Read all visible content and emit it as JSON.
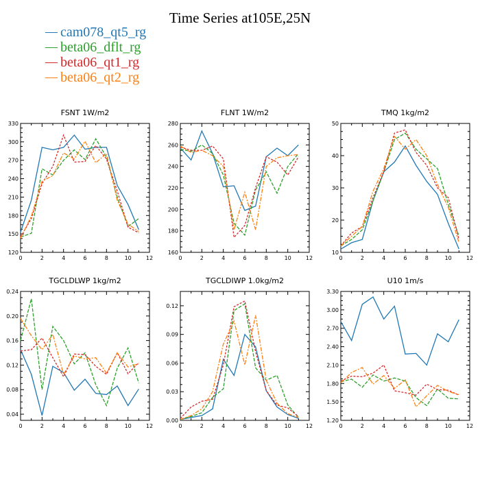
{
  "title": "Time Series at105E,25N",
  "legend": [
    {
      "name": "cam078_qt5_rg",
      "color": "#1f77b4"
    },
    {
      "name": "beta06_dflt_rg",
      "color": "#2ca02c"
    },
    {
      "name": "beta06_qt1_rg",
      "color": "#d62728"
    },
    {
      "name": "beta06_qt2_rg",
      "color": "#ff7f0e"
    }
  ],
  "chart_data": [
    {
      "type": "line",
      "title": "FSNT   1W/m2",
      "xlim": [
        0,
        12
      ],
      "xticks": [
        0,
        2,
        4,
        6,
        8,
        10,
        12
      ],
      "ylim": [
        120,
        330
      ],
      "yticks": [
        120,
        150,
        180,
        210,
        240,
        270,
        300,
        330
      ],
      "ytick_labels": [
        "120",
        "150",
        "180",
        "210",
        "240",
        "270",
        "300",
        "330"
      ],
      "x": [
        0,
        1,
        2,
        3,
        4,
        5,
        6,
        7,
        8,
        9,
        10,
        11
      ],
      "series": [
        {
          "name": "cam078_qt5_rg",
          "values": [
            153,
            205,
            291,
            287,
            291,
            311,
            288,
            291,
            291,
            229,
            198,
            157
          ]
        },
        {
          "name": "beta06_dflt_rg",
          "values": [
            145,
            151,
            256,
            246,
            270,
            287,
            271,
            305,
            275,
            210,
            162,
            175
          ]
        },
        {
          "name": "beta06_qt1_rg",
          "values": [
            145,
            175,
            232,
            260,
            311,
            267,
            268,
            294,
            272,
            220,
            161,
            152
          ]
        },
        {
          "name": "beta06_qt2_rg",
          "values": [
            143,
            179,
            236,
            245,
            282,
            272,
            301,
            266,
            281,
            205,
            166,
            154
          ]
        }
      ]
    },
    {
      "type": "line",
      "title": "FLNT   1W/m2",
      "xlim": [
        0,
        12
      ],
      "xticks": [
        0,
        2,
        4,
        6,
        8,
        10,
        12
      ],
      "ylim": [
        160,
        280
      ],
      "yticks": [
        160,
        180,
        200,
        220,
        240,
        260,
        280
      ],
      "ytick_labels": [
        "160",
        "180",
        "200",
        "220",
        "240",
        "260",
        "280"
      ],
      "x": [
        0,
        1,
        2,
        3,
        4,
        5,
        6,
        7,
        8,
        9,
        10,
        11
      ],
      "series": [
        {
          "name": "cam078_qt5_rg",
          "values": [
            257,
            246,
            273,
            252,
            221,
            222,
            199,
            203,
            249,
            257,
            250,
            260
          ]
        },
        {
          "name": "beta06_dflt_rg",
          "values": [
            256,
            254,
            260,
            252,
            232,
            187,
            176,
            218,
            235,
            215,
            240,
            252
          ]
        },
        {
          "name": "beta06_qt1_rg",
          "values": [
            258,
            255,
            255,
            259,
            247,
            174,
            185,
            220,
            249,
            244,
            232,
            249
          ]
        },
        {
          "name": "beta06_qt2_rg",
          "values": [
            259,
            253,
            255,
            250,
            240,
            181,
            216,
            181,
            240,
            248,
            250,
            251
          ]
        }
      ]
    },
    {
      "type": "line",
      "title": "TMQ   1kg/m2",
      "xlim": [
        0,
        12
      ],
      "xticks": [
        0,
        2,
        4,
        6,
        8,
        10,
        12
      ],
      "ylim": [
        10,
        50
      ],
      "yticks": [
        10,
        20,
        30,
        40,
        50
      ],
      "ytick_labels": [
        "10",
        "20",
        "30",
        "40",
        "50"
      ],
      "x": [
        0,
        1,
        2,
        3,
        4,
        5,
        6,
        7,
        8,
        9,
        10,
        11
      ],
      "series": [
        {
          "name": "cam078_qt5_rg",
          "values": [
            11,
            13,
            14,
            26,
            35,
            38,
            43,
            37,
            32,
            28,
            19,
            11
          ]
        },
        {
          "name": "beta06_dflt_rg",
          "values": [
            12,
            14,
            17,
            26,
            35,
            45,
            47,
            42,
            39,
            36,
            25,
            15
          ]
        },
        {
          "name": "beta06_qt1_rg",
          "values": [
            12,
            16,
            18,
            27,
            35,
            47,
            48,
            41,
            37,
            30,
            27,
            14
          ]
        },
        {
          "name": "beta06_qt2_rg",
          "values": [
            12,
            15,
            18,
            29,
            36,
            46,
            42,
            45,
            40,
            31,
            24,
            13
          ]
        }
      ]
    },
    {
      "type": "line",
      "title": "TGCLDLWP   1kg/m2",
      "xlim": [
        0,
        12
      ],
      "xticks": [
        0,
        2,
        4,
        6,
        8,
        10,
        12
      ],
      "ylim": [
        0.03,
        0.24
      ],
      "yticks": [
        0.04,
        0.08,
        0.12,
        0.16,
        0.2,
        0.24
      ],
      "ytick_labels": [
        "0.04",
        "0.08",
        "0.12",
        "0.16",
        "0.20",
        "0.24"
      ],
      "x": [
        0,
        1,
        2,
        3,
        4,
        5,
        6,
        7,
        8,
        9,
        10,
        11
      ],
      "series": [
        {
          "name": "cam078_qt5_rg",
          "values": [
            0.145,
            0.105,
            0.038,
            0.118,
            0.108,
            0.079,
            0.097,
            0.074,
            0.072,
            0.086,
            0.054,
            0.081
          ]
        },
        {
          "name": "beta06_dflt_rg",
          "values": [
            0.16,
            0.228,
            0.08,
            0.183,
            0.16,
            0.122,
            0.14,
            0.088,
            0.054,
            0.115,
            0.148,
            0.091
          ]
        },
        {
          "name": "beta06_qt1_rg",
          "values": [
            0.143,
            0.145,
            0.164,
            0.132,
            0.101,
            0.138,
            0.137,
            0.118,
            0.105,
            0.14,
            0.106,
            0.124
          ]
        },
        {
          "name": "beta06_qt2_rg",
          "values": [
            0.196,
            0.168,
            0.145,
            0.17,
            0.105,
            0.135,
            0.13,
            0.132,
            0.107,
            0.14,
            0.117,
            0.122
          ]
        }
      ]
    },
    {
      "type": "line",
      "title": "TGCLDIWP   1.0kg/m2",
      "xlim": [
        0,
        12
      ],
      "xticks": [
        0,
        2,
        4,
        6,
        8,
        10,
        12
      ],
      "ylim": [
        0,
        0.135
      ],
      "yticks": [
        0,
        0.03,
        0.06,
        0.09,
        0.12
      ],
      "ytick_labels": [
        "0.00",
        "0.03",
        "0.06",
        "0.09",
        "0.12"
      ],
      "x": [
        0,
        1,
        2,
        3,
        4,
        5,
        6,
        7,
        8,
        9,
        10,
        11
      ],
      "series": [
        {
          "name": "cam078_qt5_rg",
          "values": [
            0.001,
            0.003,
            0.005,
            0.012,
            0.064,
            0.047,
            0.09,
            0.077,
            0.031,
            0.014,
            0.006,
            0.002
          ]
        },
        {
          "name": "beta06_dflt_rg",
          "values": [
            0.001,
            0.004,
            0.008,
            0.024,
            0.033,
            0.115,
            0.122,
            0.055,
            0.042,
            0.047,
            0.016,
            0.003
          ]
        },
        {
          "name": "beta06_qt1_rg",
          "values": [
            0.002,
            0.014,
            0.02,
            0.022,
            0.058,
            0.119,
            0.125,
            0.072,
            0.031,
            0.016,
            0.013,
            0.004
          ]
        },
        {
          "name": "beta06_qt2_rg",
          "values": [
            0.001,
            0.005,
            0.012,
            0.03,
            0.08,
            0.104,
            0.058,
            0.11,
            0.042,
            0.018,
            0.007,
            0.003
          ]
        }
      ]
    },
    {
      "type": "line",
      "title": "U10   1m/s",
      "xlim": [
        0,
        12
      ],
      "xticks": [
        0,
        2,
        4,
        6,
        8,
        10,
        12
      ],
      "ylim": [
        1.2,
        3.3
      ],
      "yticks": [
        1.2,
        1.5,
        1.8,
        2.1,
        2.4,
        2.7,
        3.0,
        3.3
      ],
      "ytick_labels": [
        "1.20",
        "1.50",
        "1.80",
        "2.10",
        "2.40",
        "2.70",
        "3.00",
        "3.30"
      ],
      "x": [
        0,
        1,
        2,
        3,
        4,
        5,
        6,
        7,
        8,
        9,
        10,
        11
      ],
      "series": [
        {
          "name": "cam078_qt5_rg",
          "values": [
            2.81,
            2.5,
            3.09,
            3.21,
            2.85,
            3.06,
            2.28,
            2.29,
            2.1,
            2.61,
            2.48,
            2.84
          ]
        },
        {
          "name": "beta06_dflt_rg",
          "values": [
            1.83,
            1.87,
            1.74,
            1.94,
            1.84,
            1.89,
            1.84,
            1.57,
            1.44,
            1.71,
            1.56,
            1.55
          ]
        },
        {
          "name": "beta06_qt1_rg",
          "values": [
            1.84,
            1.92,
            1.91,
            1.97,
            2.1,
            1.68,
            1.65,
            1.61,
            1.79,
            1.7,
            1.69,
            1.61
          ]
        },
        {
          "name": "beta06_qt2_rg",
          "values": [
            1.81,
            1.98,
            2.06,
            1.79,
            1.93,
            1.72,
            1.86,
            1.42,
            1.6,
            1.77,
            1.67,
            1.62
          ]
        }
      ]
    }
  ]
}
